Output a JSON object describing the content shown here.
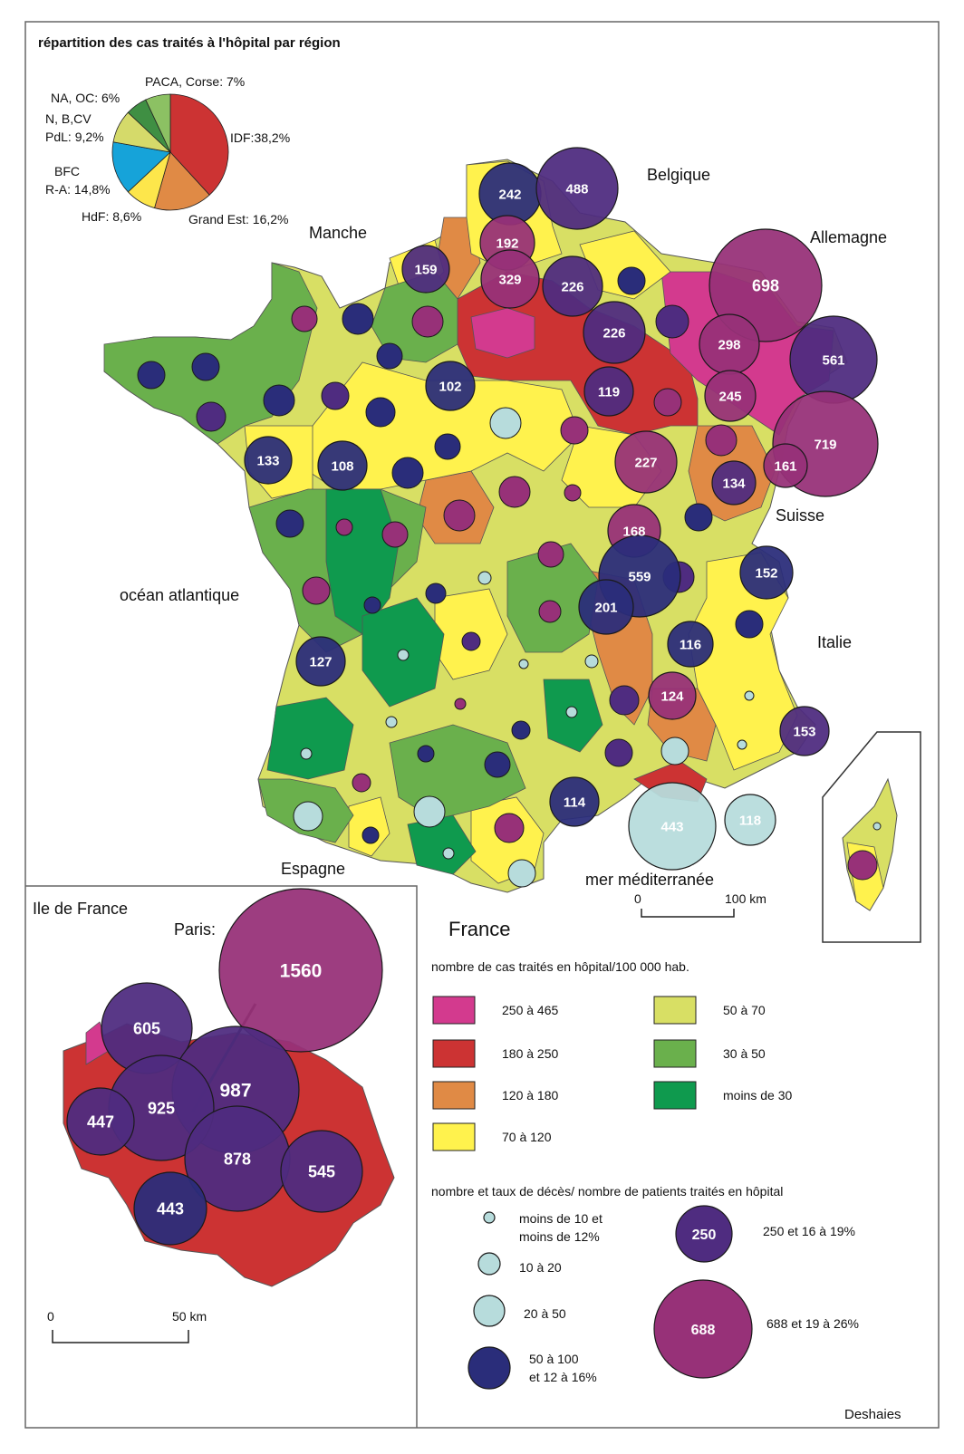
{
  "pie": {
    "title": "répartition des cas traités à l'hôpital par région",
    "slices": [
      {
        "label": "IDF:38,2%",
        "value": 38.2,
        "color": "#cc3333"
      },
      {
        "label": "Grand Est: 16,2%",
        "value": 16.2,
        "color": "#e08a45"
      },
      {
        "label": "HdF: 8,6%",
        "value": 8.6,
        "color": "#fde64b"
      },
      {
        "label": "BFC\nR-A: 14,8%",
        "value": 14.8,
        "color": "#16a3d9"
      },
      {
        "label": "N, B,CV\nPdL: 9,2%",
        "value": 9.2,
        "color": "#d5da6a"
      },
      {
        "label": "NA, OC: 6%",
        "value": 6.0,
        "color": "#3f8f43"
      },
      {
        "label": "PACA, Corse: 7%",
        "value": 7.0,
        "color": "#8cc163"
      }
    ]
  },
  "places": {
    "belgique": "Belgique",
    "allemagne": "Allemagne",
    "manche": "Manche",
    "suisse": "Suisse",
    "ocean": "océan atlantique",
    "italie": "Italie",
    "espagne": "Espagne",
    "mer": "mer méditerranée"
  },
  "scale_main": {
    "zero": "0",
    "km": "100 km"
  },
  "idf": {
    "title": "Ile de France",
    "paris": "Paris:",
    "scale_zero": "0",
    "scale_km": "50 km"
  },
  "france_label": "France",
  "legend": {
    "rate_title": "nombre de cas traités en hôpital/100 000 hab.",
    "classes": [
      {
        "label": "250 à 465",
        "color": "#d33a8e"
      },
      {
        "label": "180 à 250",
        "color": "#cc3333"
      },
      {
        "label": "120 à 180",
        "color": "#e08a45"
      },
      {
        "label": "70 à 120",
        "color": "#fff24d"
      },
      {
        "label": "50 à 70",
        "color": "#d8df64"
      },
      {
        "label": "30 à 50",
        "color": "#6ab04c"
      },
      {
        "label": "moins de 30",
        "color": "#0f9a4e"
      }
    ],
    "death_title": "nombre et taux de décès/ nombre de patients traités en hôpital",
    "bubbles": [
      {
        "label1": "moins de 10 et",
        "label2": "moins de 12%",
        "color": "#b7dcdc"
      },
      {
        "label1": "10 à 20",
        "label2": "",
        "color": "#b7dcdc"
      },
      {
        "label1": "20 à 50",
        "label2": "",
        "color": "#b7dcdc"
      },
      {
        "label1": "50 à 100",
        "label2": "et 12 à 16%",
        "color": "#2a2d7a"
      },
      {
        "value": "250",
        "label1": "250 et 16 à 19%",
        "label2": "",
        "color": "#4f2c80"
      },
      {
        "value": "688",
        "label1": "688 et 19 à 26%",
        "label2": "",
        "color": "#973178"
      }
    ]
  },
  "bubbles_main": [
    {
      "v": "242",
      "c": "#2a2d7a"
    },
    {
      "v": "488",
      "c": "#4f2c80"
    },
    {
      "v": "192",
      "c": "#973178"
    },
    {
      "v": "159",
      "c": "#4f2c80"
    },
    {
      "v": "329",
      "c": "#973178"
    },
    {
      "v": "226",
      "c": "#4f2c80"
    },
    {
      "v": "698",
      "c": "#973178"
    },
    {
      "v": "226",
      "c": "#4f2c80"
    },
    {
      "v": "298",
      "c": "#973178"
    },
    {
      "v": "561",
      "c": "#4f2c80"
    },
    {
      "v": "102",
      "c": "#2a2d7a"
    },
    {
      "v": "119",
      "c": "#4f2c80"
    },
    {
      "v": "245",
      "c": "#973178"
    },
    {
      "v": "719",
      "c": "#973178"
    },
    {
      "v": "133",
      "c": "#2a2d7a"
    },
    {
      "v": "108",
      "c": "#2a2d7a"
    },
    {
      "v": "227",
      "c": "#973178"
    },
    {
      "v": "161",
      "c": "#973178"
    },
    {
      "v": "134",
      "c": "#4f2c80"
    },
    {
      "v": "168",
      "c": "#973178"
    },
    {
      "v": "559",
      "c": "#2a2d7a"
    },
    {
      "v": "152",
      "c": "#2a2d7a"
    },
    {
      "v": "201",
      "c": "#2a2d7a"
    },
    {
      "v": "127",
      "c": "#2a2d7a"
    },
    {
      "v": "116",
      "c": "#2a2d7a"
    },
    {
      "v": "124",
      "c": "#973178"
    },
    {
      "v": "153",
      "c": "#4f2c80"
    },
    {
      "v": "114",
      "c": "#2a2d7a"
    },
    {
      "v": "443",
      "c": "#b7dcdc"
    },
    {
      "v": "118",
      "c": "#b7dcdc"
    }
  ],
  "bubbles_idf": [
    {
      "v": "1560",
      "c": "#973178"
    },
    {
      "v": "605",
      "c": "#4f2c80"
    },
    {
      "v": "987",
      "c": "#4f2c80"
    },
    {
      "v": "925",
      "c": "#4f2c80"
    },
    {
      "v": "447",
      "c": "#4f2c80"
    },
    {
      "v": "878",
      "c": "#4f2c80"
    },
    {
      "v": "545",
      "c": "#4f2c80"
    },
    {
      "v": "443",
      "c": "#2a2d7a"
    }
  ],
  "credit": "Deshaies"
}
